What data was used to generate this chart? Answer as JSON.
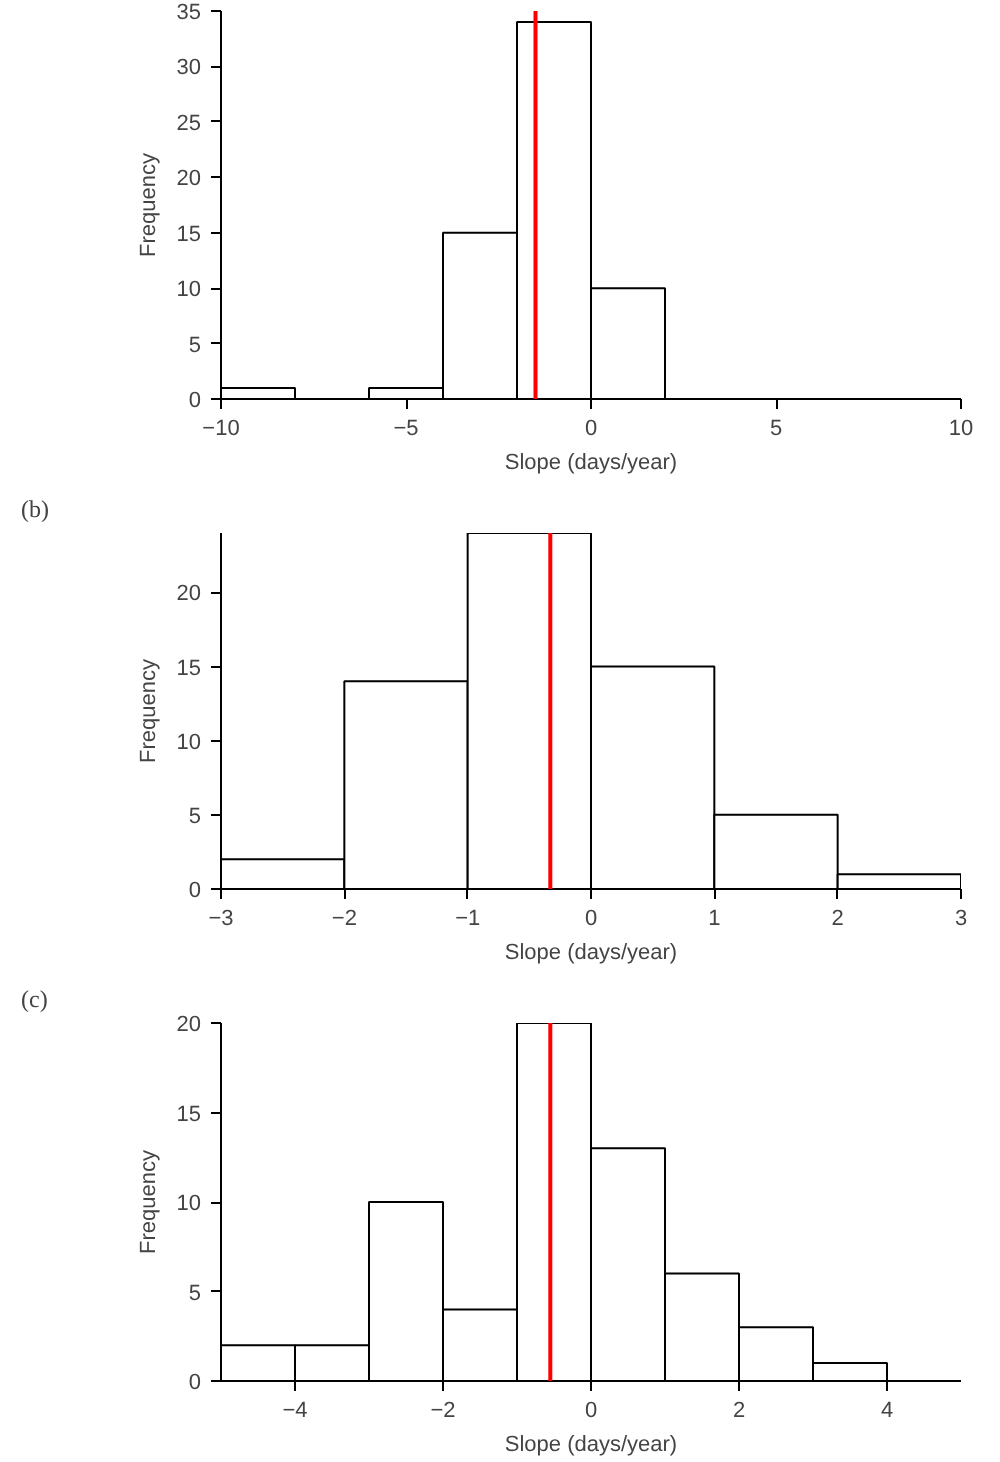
{
  "chart_data": [
    {
      "type": "histogram",
      "bins": [
        -10,
        -8,
        -6,
        -4,
        -2,
        0,
        2,
        4,
        6,
        8,
        10
      ],
      "values": [
        1,
        0,
        1,
        15,
        34,
        10,
        0,
        0,
        0,
        0
      ],
      "color": "#ffffff",
      "xlabel": "Slope (days/year)",
      "ylabel": "Frequency",
      "xlim": [
        -10,
        10
      ],
      "xticks": [
        -10,
        -5,
        0,
        5,
        10
      ],
      "ylim": [
        0,
        35
      ],
      "yticks": [
        0,
        5,
        10,
        15,
        20,
        25,
        30,
        35
      ],
      "grid": false,
      "ref_lines": [
        {
          "axis": "x",
          "value": -1.5,
          "color": "#ff0000"
        }
      ]
    },
    {
      "type": "histogram",
      "bins": [
        -3,
        -2,
        -1,
        0,
        1,
        2,
        3
      ],
      "values": [
        2,
        14,
        24,
        15,
        5,
        1
      ],
      "color": "#ffffff",
      "xlabel": "Slope (days/year)",
      "ylabel": "Frequency",
      "xlim": [
        -3,
        3
      ],
      "xticks": [
        -3,
        -2,
        -1,
        0,
        1,
        2,
        3
      ],
      "ylim": [
        0,
        24
      ],
      "yticks": [
        0,
        5,
        10,
        15,
        20
      ],
      "grid": false,
      "annotations": [
        "(b)"
      ],
      "ref_lines": [
        {
          "axis": "x",
          "value": -0.33,
          "color": "#ff0000"
        }
      ]
    },
    {
      "type": "histogram",
      "bins": [
        -5,
        -4,
        -3,
        -2,
        -1,
        0,
        1,
        2,
        3,
        4,
        5
      ],
      "values": [
        2,
        2,
        10,
        4,
        20,
        13,
        6,
        3,
        1,
        0
      ],
      "color": "#ffffff",
      "xlabel": "Slope (days/year)",
      "ylabel": "Frequency",
      "xlim": [
        -5,
        5
      ],
      "xticks": [
        -4,
        -2,
        0,
        2,
        4
      ],
      "ylim": [
        0,
        20
      ],
      "yticks": [
        0,
        5,
        10,
        15,
        20
      ],
      "grid": false,
      "annotations": [
        "(c)"
      ],
      "ref_lines": [
        {
          "axis": "x",
          "value": -0.55,
          "color": "#ff0000"
        }
      ]
    }
  ]
}
